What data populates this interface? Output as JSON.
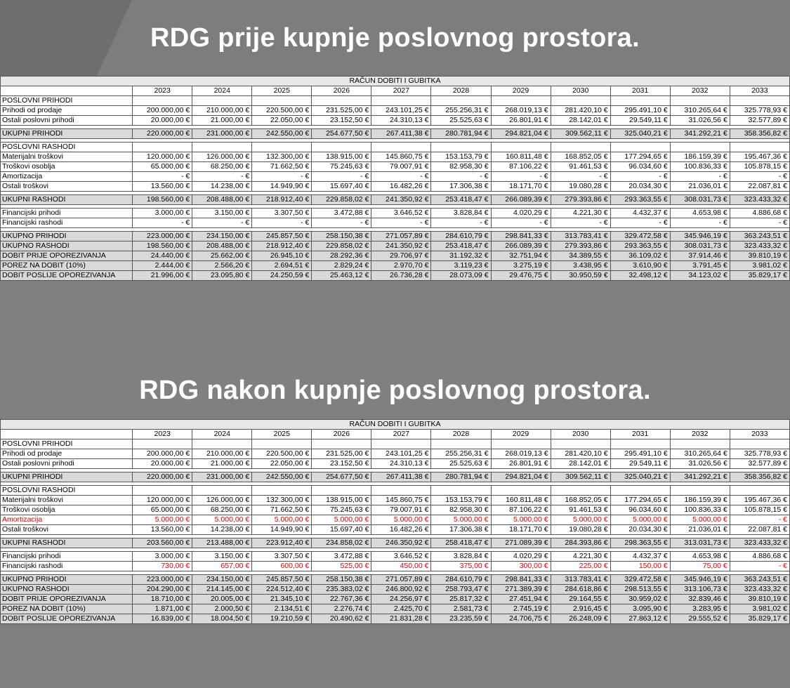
{
  "before": {
    "heading": "RDG prije kupnje poslovnog prostora.",
    "table_title": "RAČUN DOBITI I GUBITKA",
    "years": [
      "2023",
      "2024",
      "2025",
      "2026",
      "2027",
      "2028",
      "2029",
      "2030",
      "2031",
      "2032",
      "2033"
    ],
    "rows": [
      {
        "type": "sec",
        "label": "POSLOVNI PRIHODI",
        "values": []
      },
      {
        "type": "data",
        "label": "Prihodi od prodaje",
        "values": [
          "200.000,00 €",
          "210.000,00 €",
          "220.500,00 €",
          "231.525,00 €",
          "243.101,25 €",
          "255.256,31 €",
          "268.019,13 €",
          "281.420,10 €",
          "295.491,10 €",
          "310.265,64 €",
          "325.778,93 €"
        ]
      },
      {
        "type": "data",
        "label": "Ostali poslovni prihodi",
        "values": [
          "20.000,00 €",
          "21.000,00 €",
          "22.050,00 €",
          "23.152,50 €",
          "24.310,13 €",
          "25.525,63 €",
          "26.801,91 €",
          "28.142,01 €",
          "29.549,11 €",
          "31.026,56 €",
          "32.577,89 €"
        ]
      },
      {
        "type": "gap",
        "label": "",
        "values": []
      },
      {
        "type": "shade",
        "label": "UKUPNI PRIHODI",
        "values": [
          "220.000,00 €",
          "231.000,00 €",
          "242.550,00 €",
          "254.677,50 €",
          "267.411,38 €",
          "280.781,94 €",
          "294.821,04 €",
          "309.562,11 €",
          "325.040,21 €",
          "341.292,21 €",
          "358.356,82 €"
        ]
      },
      {
        "type": "gap",
        "label": "",
        "values": []
      },
      {
        "type": "sec",
        "label": "POSLOVNI RASHODI",
        "values": []
      },
      {
        "type": "data",
        "label": "Materijalni troškovi",
        "values": [
          "120.000,00 €",
          "126.000,00 €",
          "132.300,00 €",
          "138.915,00 €",
          "145.860,75 €",
          "153.153,79 €",
          "160.811,48 €",
          "168.852,05 €",
          "177.294,65 €",
          "186.159,39 €",
          "195.467,36 €"
        ]
      },
      {
        "type": "data",
        "label": "Troškovi osoblja",
        "values": [
          "65.000,00 €",
          "68.250,00 €",
          "71.662,50 €",
          "75.245,63 €",
          "79.007,91 €",
          "82.958,30 €",
          "87.106,22 €",
          "91.461,53 €",
          "96.034,60 €",
          "100.836,33 €",
          "105.878,15 €"
        ]
      },
      {
        "type": "data",
        "label": "Amortizacija",
        "values": [
          "-  €",
          "-  €",
          "-  €",
          "-  €",
          "-  €",
          "-  €",
          "-  €",
          "-  €",
          "-  €",
          "-  €",
          "-  €"
        ]
      },
      {
        "type": "data",
        "label": "Ostali troškovi",
        "values": [
          "13.560,00 €",
          "14.238,00 €",
          "14.949,90 €",
          "15.697,40 €",
          "16.482,26 €",
          "17.306,38 €",
          "18.171,70 €",
          "19.080,28 €",
          "20.034,30 €",
          "21.036,01 €",
          "22.087,81 €"
        ]
      },
      {
        "type": "gap",
        "label": "",
        "values": []
      },
      {
        "type": "shade",
        "label": "UKUPNI RASHODI",
        "values": [
          "198.560,00 €",
          "208.488,00 €",
          "218.912,40 €",
          "229.858,02 €",
          "241.350,92 €",
          "253.418,47 €",
          "266.089,39 €",
          "279.393,86 €",
          "293.363,55 €",
          "308.031,73 €",
          "323.433,32 €"
        ]
      },
      {
        "type": "gap",
        "label": "",
        "values": []
      },
      {
        "type": "data",
        "label": "Financijski prihodi",
        "values": [
          "3.000,00 €",
          "3.150,00 €",
          "3.307,50 €",
          "3.472,88 €",
          "3.646,52 €",
          "3.828,84 €",
          "4.020,29 €",
          "4.221,30 €",
          "4.432,37 €",
          "4.653,98 €",
          "4.886,68 €"
        ]
      },
      {
        "type": "data",
        "label": "Financijski rashodi",
        "values": [
          "-  €",
          "-  €",
          "-  €",
          "-  €",
          "-  €",
          "-  €",
          "-  €",
          "-  €",
          "-  €",
          "-  €",
          "-  €"
        ]
      },
      {
        "type": "gap",
        "label": "",
        "values": []
      },
      {
        "type": "shade",
        "label": "UKUPNO PRIHODI",
        "values": [
          "223.000,00 €",
          "234.150,00 €",
          "245.857,50 €",
          "258.150,38 €",
          "271.057,89 €",
          "284.610,79 €",
          "298.841,33 €",
          "313.783,41 €",
          "329.472,58 €",
          "345.946,19 €",
          "363.243,51 €"
        ]
      },
      {
        "type": "shade",
        "label": "UKUPNO RASHODI",
        "values": [
          "198.560,00 €",
          "208.488,00 €",
          "218.912,40 €",
          "229.858,02 €",
          "241.350,92 €",
          "253.418,47 €",
          "266.089,39 €",
          "279.393,86 €",
          "293.363,55 €",
          "308.031,73 €",
          "323.433,32 €"
        ]
      },
      {
        "type": "shade",
        "label": "DOBIT PRIJE OPOREZIVANJA",
        "values": [
          "24.440,00 €",
          "25.662,00 €",
          "26.945,10 €",
          "28.292,36 €",
          "29.706,97 €",
          "31.192,32 €",
          "32.751,94 €",
          "34.389,55 €",
          "36.109,02 €",
          "37.914,46 €",
          "39.810,19 €"
        ]
      },
      {
        "type": "shade",
        "label": "POREZ NA DOBIT (10%)",
        "values": [
          "2.444,00 €",
          "2.566,20 €",
          "2.694,51 €",
          "2.829,24 €",
          "2.970,70 €",
          "3.119,23 €",
          "3.275,19 €",
          "3.438,95 €",
          "3.610,90 €",
          "3.791,45 €",
          "3.981,02 €"
        ]
      },
      {
        "type": "shade",
        "label": "DOBIT POSLIJE OPOREZIVANJA",
        "values": [
          "21.996,00 €",
          "23.095,80 €",
          "24.250,59 €",
          "25.463,12 €",
          "26.736,28 €",
          "28.073,09 €",
          "29.476,75 €",
          "30.950,59 €",
          "32.498,12 €",
          "34.123,02 €",
          "35.829,17 €"
        ]
      }
    ]
  },
  "after": {
    "heading": "RDG nakon kupnje poslovnog prostora.",
    "table_title": "RAČUN DOBITI I GUBITKA",
    "years": [
      "2023",
      "2024",
      "2025",
      "2026",
      "2027",
      "2028",
      "2029",
      "2030",
      "2031",
      "2032",
      "2033"
    ],
    "rows": [
      {
        "type": "sec",
        "label": "POSLOVNI PRIHODI",
        "values": []
      },
      {
        "type": "data",
        "label": "Prihodi od prodaje",
        "values": [
          "200.000,00 €",
          "210.000,00 €",
          "220.500,00 €",
          "231.525,00 €",
          "243.101,25 €",
          "255.256,31 €",
          "268.019,13 €",
          "281.420,10 €",
          "295.491,10 €",
          "310.265,64 €",
          "325.778,93 €"
        ]
      },
      {
        "type": "data",
        "label": "Ostali poslovni prihodi",
        "values": [
          "20.000,00 €",
          "21.000,00 €",
          "22.050,00 €",
          "23.152,50 €",
          "24.310,13 €",
          "25.525,63 €",
          "26.801,91 €",
          "28.142,01 €",
          "29.549,11 €",
          "31.026,56 €",
          "32.577,89 €"
        ]
      },
      {
        "type": "gap",
        "label": "",
        "values": []
      },
      {
        "type": "shade",
        "label": "UKUPNI PRIHODI",
        "values": [
          "220.000,00 €",
          "231.000,00 €",
          "242.550,00 €",
          "254.677,50 €",
          "267.411,38 €",
          "280.781,94 €",
          "294.821,04 €",
          "309.562,11 €",
          "325.040,21 €",
          "341.292,21 €",
          "358.356,82 €"
        ]
      },
      {
        "type": "gap",
        "label": "",
        "values": []
      },
      {
        "type": "sec",
        "label": "POSLOVNI RASHODI",
        "values": []
      },
      {
        "type": "data",
        "label": "Materijalni troškovi",
        "values": [
          "120.000,00 €",
          "126.000,00 €",
          "132.300,00 €",
          "138.915,00 €",
          "145.860,75 €",
          "153.153,79 €",
          "160.811,48 €",
          "168.852,05 €",
          "177.294,65 €",
          "186.159,39 €",
          "195.467,36 €"
        ]
      },
      {
        "type": "data",
        "label": "Troškovi osoblja",
        "values": [
          "65.000,00 €",
          "68.250,00 €",
          "71.662,50 €",
          "75.245,63 €",
          "79.007,91 €",
          "82.958,30 €",
          "87.106,22 €",
          "91.461,53 €",
          "96.034,60 €",
          "100.836,33 €",
          "105.878,15 €"
        ]
      },
      {
        "type": "red",
        "label": "Amortizacija",
        "values": [
          "5.000,00 €",
          "5.000,00 €",
          "5.000,00 €",
          "5.000,00 €",
          "5.000,00 €",
          "5.000,00 €",
          "5.000,00 €",
          "5.000,00 €",
          "5.000,00 €",
          "5.000,00 €",
          "-  €"
        ]
      },
      {
        "type": "data",
        "label": "Ostali troškovi",
        "values": [
          "13.560,00 €",
          "14.238,00 €",
          "14.949,90 €",
          "15.697,40 €",
          "16.482,26 €",
          "17.306,38 €",
          "18.171,70 €",
          "19.080,28 €",
          "20.034,30 €",
          "21.036,01 €",
          "22.087,81 €"
        ]
      },
      {
        "type": "gap",
        "label": "",
        "values": []
      },
      {
        "type": "shade",
        "label": "UKUPNI RASHODI",
        "values": [
          "203.560,00 €",
          "213.488,00 €",
          "223.912,40 €",
          "234.858,02 €",
          "246.350,92 €",
          "258.418,47 €",
          "271.089,39 €",
          "284.393,86 €",
          "298.363,55 €",
          "313.031,73 €",
          "323.433,32 €"
        ]
      },
      {
        "type": "gap",
        "label": "",
        "values": []
      },
      {
        "type": "data",
        "label": "Financijski prihodi",
        "values": [
          "3.000,00 €",
          "3.150,00 €",
          "3.307,50 €",
          "3.472,88 €",
          "3.646,52 €",
          "3.828,84 €",
          "4.020,29 €",
          "4.221,30 €",
          "4.432,37 €",
          "4.653,98 €",
          "4.886,68 €"
        ]
      },
      {
        "type": "redval",
        "label": "Financijski rashodi",
        "values": [
          "730,00 €",
          "657,00 €",
          "600,00 €",
          "525,00 €",
          "450,00 €",
          "375,00 €",
          "300,00 €",
          "225,00 €",
          "150,00 €",
          "75,00 €",
          "-  €"
        ]
      },
      {
        "type": "gap",
        "label": "",
        "values": []
      },
      {
        "type": "shade",
        "label": "UKUPNO PRIHODI",
        "values": [
          "223.000,00 €",
          "234.150,00 €",
          "245.857,50 €",
          "258.150,38 €",
          "271.057,89 €",
          "284.610,79 €",
          "298.841,33 €",
          "313.783,41 €",
          "329.472,58 €",
          "345.946,19 €",
          "363.243,51 €"
        ]
      },
      {
        "type": "shade",
        "label": "UKUPNO RASHODI",
        "values": [
          "204.290,00 €",
          "214.145,00 €",
          "224.512,40 €",
          "235.383,02 €",
          "246.800,92 €",
          "258.793,47 €",
          "271.389,39 €",
          "284.618,86 €",
          "298.513,55 €",
          "313.106,73 €",
          "323.433,32 €"
        ]
      },
      {
        "type": "shade",
        "label": "DOBIT PRIJE OPOREZIVANJA",
        "values": [
          "18.710,00 €",
          "20.005,00 €",
          "21.345,10 €",
          "22.767,36 €",
          "24.256,97 €",
          "25.817,32 €",
          "27.451,94 €",
          "29.164,55 €",
          "30.959,02 €",
          "32.839,46 €",
          "39.810,19 €"
        ]
      },
      {
        "type": "shade",
        "label": "POREZ NA DOBIT (10%)",
        "values": [
          "1.871,00 €",
          "2.000,50 €",
          "2.134,51 €",
          "2.276,74 €",
          "2.425,70 €",
          "2.581,73 €",
          "2.745,19 €",
          "2.916,45 €",
          "3.095,90 €",
          "3.283,95 €",
          "3.981,02 €"
        ]
      },
      {
        "type": "shade",
        "label": "DOBIT POSLIJE OPOREZIVANJA",
        "values": [
          "16.839,00 €",
          "18.004,50 €",
          "19.210,59 €",
          "20.490,62 €",
          "21.831,28 €",
          "23.235,59 €",
          "24.706,75 €",
          "26.248,09 €",
          "27.863,12 €",
          "29.555,52 €",
          "35.829,17 €"
        ]
      }
    ]
  },
  "colors": {
    "background": "#808080",
    "title_text": "#ffffff",
    "total_row": "#d9d9d9",
    "highlight_text": "#e00000"
  }
}
